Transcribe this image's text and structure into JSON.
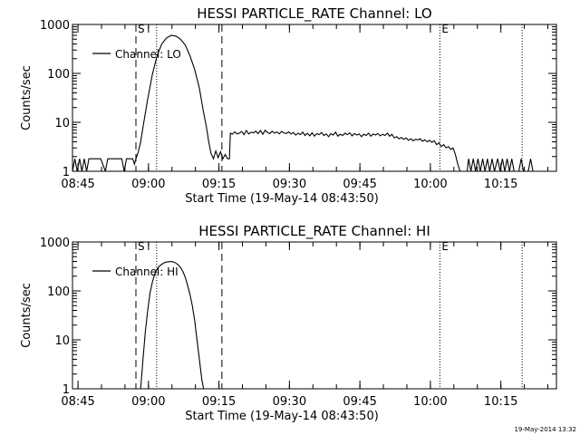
{
  "timestamp": "19-May-2014 13:32",
  "chart_data": [
    {
      "type": "line",
      "title": "HESSI PARTICLE_RATE Channel: LO",
      "xlabel": "Start Time (19-May-14 08:43:50)",
      "ylabel": "Counts/sec",
      "yscale": "log",
      "ylim": [
        1,
        1000
      ],
      "xlim_minutes": [
        0,
        103
      ],
      "xtick_labels": [
        "08:45",
        "09:00",
        "09:15",
        "09:30",
        "09:45",
        "10:00",
        "10:15"
      ],
      "xtick_minutes": [
        1.17,
        16.17,
        31.17,
        46.17,
        61.17,
        76.17,
        91.17
      ],
      "ytick_labels": [
        "1",
        "10",
        "100",
        "1000"
      ],
      "ytick_values": [
        1,
        10,
        100,
        1000
      ],
      "legend": "Channel: LO",
      "markers": [
        {
          "type": "dashed",
          "minute": 13.5,
          "label": "S"
        },
        {
          "type": "dotted",
          "minute": 17.9,
          "label": ""
        },
        {
          "type": "dashed",
          "minute": 31.8,
          "label": ""
        },
        {
          "type": "dotted",
          "minute": 78.2,
          "label": "E"
        },
        {
          "type": "dotted",
          "minute": 95.7,
          "label": ""
        }
      ],
      "series": [
        {
          "points": [
            [
              0.0,
              1.0
            ],
            [
              0.5,
              1.8
            ],
            [
              1.0,
              1.0
            ],
            [
              1.5,
              1.8
            ],
            [
              2.0,
              1.0
            ],
            [
              2.5,
              1.8
            ],
            [
              3.0,
              1.0
            ],
            [
              3.5,
              1.8
            ],
            [
              4.0,
              1.8
            ],
            [
              5.0,
              1.8
            ],
            [
              6.0,
              1.8
            ],
            [
              7.0,
              1.0
            ],
            [
              7.5,
              1.8
            ],
            [
              8.5,
              1.8
            ],
            [
              9.5,
              1.8
            ],
            [
              10.5,
              1.8
            ],
            [
              11.0,
              1.0
            ],
            [
              11.5,
              1.8
            ],
            [
              12.0,
              1.8
            ],
            [
              12.8,
              1.8
            ],
            [
              13.2,
              1.4
            ],
            [
              13.5,
              1.8
            ],
            [
              14.0,
              2.5
            ],
            [
              14.5,
              4.0
            ],
            [
              15.0,
              8
            ],
            [
              16.0,
              30
            ],
            [
              17.0,
              95
            ],
            [
              18.0,
              230
            ],
            [
              19.0,
              400
            ],
            [
              20.0,
              530
            ],
            [
              21.0,
              600
            ],
            [
              22.0,
              580
            ],
            [
              23.0,
              500
            ],
            [
              24.0,
              380
            ],
            [
              25.0,
              230
            ],
            [
              26.0,
              120
            ],
            [
              27.0,
              50
            ],
            [
              27.8,
              18
            ],
            [
              28.5,
              8
            ],
            [
              29.0,
              4
            ],
            [
              29.5,
              2.3
            ],
            [
              30.0,
              1.8
            ],
            [
              30.5,
              2.6
            ],
            [
              31.0,
              1.9
            ],
            [
              31.5,
              2.5
            ],
            [
              32.0,
              1.8
            ],
            [
              32.5,
              2.2
            ],
            [
              33.0,
              1.8
            ],
            [
              33.4,
              1.8
            ],
            [
              33.6,
              6.0
            ],
            [
              34.0,
              5.7
            ],
            [
              34.5,
              6.4
            ],
            [
              35.0,
              5.8
            ],
            [
              35.5,
              6.0
            ],
            [
              36.0,
              6.5
            ],
            [
              36.5,
              5.6
            ],
            [
              37.0,
              6.8
            ],
            [
              37.5,
              5.8
            ],
            [
              38.0,
              6.3
            ],
            [
              38.5,
              6.1
            ],
            [
              39.0,
              6.6
            ],
            [
              39.5,
              5.9
            ],
            [
              40.0,
              6.8
            ],
            [
              40.5,
              5.7
            ],
            [
              41.0,
              6.9
            ],
            [
              41.5,
              6.2
            ],
            [
              42.0,
              5.9
            ],
            [
              42.5,
              6.6
            ],
            [
              43.0,
              6.0
            ],
            [
              43.5,
              6.4
            ],
            [
              44.0,
              5.8
            ],
            [
              44.5,
              6.5
            ],
            [
              45.0,
              6.1
            ],
            [
              45.5,
              5.9
            ],
            [
              46.0,
              6.4
            ],
            [
              46.5,
              5.8
            ],
            [
              47.0,
              6.2
            ],
            [
              47.5,
              5.5
            ],
            [
              48.0,
              6.0
            ],
            [
              48.5,
              5.6
            ],
            [
              49.0,
              6.3
            ],
            [
              49.5,
              5.4
            ],
            [
              50.0,
              6.0
            ],
            [
              50.5,
              5.3
            ],
            [
              51.0,
              6.1
            ],
            [
              51.5,
              5.2
            ],
            [
              52.0,
              5.9
            ],
            [
              52.5,
              5.6
            ],
            [
              53.0,
              6.2
            ],
            [
              53.5,
              5.4
            ],
            [
              54.0,
              5.8
            ],
            [
              54.5,
              5.1
            ],
            [
              55.0,
              5.9
            ],
            [
              55.5,
              5.5
            ],
            [
              56.0,
              6.3
            ],
            [
              56.5,
              5.2
            ],
            [
              57.0,
              5.7
            ],
            [
              57.5,
              5.4
            ],
            [
              58.0,
              6.0
            ],
            [
              58.5,
              5.6
            ],
            [
              59.0,
              6.1
            ],
            [
              59.5,
              5.3
            ],
            [
              60.0,
              5.9
            ],
            [
              60.5,
              5.5
            ],
            [
              61.0,
              5.8
            ],
            [
              61.5,
              5.1
            ],
            [
              62.0,
              5.7
            ],
            [
              62.5,
              5.4
            ],
            [
              63.0,
              6.0
            ],
            [
              63.5,
              5.2
            ],
            [
              64.0,
              5.8
            ],
            [
              64.5,
              5.5
            ],
            [
              65.0,
              5.9
            ],
            [
              65.5,
              5.3
            ],
            [
              66.0,
              5.7
            ],
            [
              66.5,
              5.4
            ],
            [
              67.0,
              6.0
            ],
            [
              67.5,
              5.2
            ],
            [
              68.0,
              5.7
            ],
            [
              68.5,
              4.8
            ],
            [
              69.0,
              5.1
            ],
            [
              69.5,
              4.6
            ],
            [
              70.0,
              4.9
            ],
            [
              70.5,
              4.5
            ],
            [
              71.0,
              4.8
            ],
            [
              71.5,
              4.3
            ],
            [
              72.0,
              4.6
            ],
            [
              72.5,
              4.2
            ],
            [
              73.0,
              4.5
            ],
            [
              73.5,
              4.4
            ],
            [
              74.0,
              4.6
            ],
            [
              74.5,
              4.1
            ],
            [
              75.0,
              4.4
            ],
            [
              75.5,
              4.0
            ],
            [
              76.0,
              4.3
            ],
            [
              76.5,
              3.9
            ],
            [
              77.0,
              4.2
            ],
            [
              77.5,
              3.5
            ],
            [
              78.0,
              3.8
            ],
            [
              78.5,
              3.2
            ],
            [
              79.0,
              3.5
            ],
            [
              79.5,
              3.0
            ],
            [
              80.0,
              3.2
            ],
            [
              80.5,
              2.8
            ],
            [
              81.0,
              3.0
            ],
            [
              81.5,
              2.2
            ],
            [
              82.0,
              1.4
            ],
            [
              82.5,
              1.0
            ],
            [
              84.0,
              1.0
            ],
            [
              84.3,
              1.8
            ],
            [
              84.8,
              1.0
            ],
            [
              85.3,
              1.8
            ],
            [
              85.8,
              1.0
            ],
            [
              86.3,
              1.8
            ],
            [
              86.8,
              1.0
            ],
            [
              87.3,
              1.8
            ],
            [
              87.8,
              1.0
            ],
            [
              88.3,
              1.8
            ],
            [
              88.8,
              1.0
            ],
            [
              89.3,
              1.8
            ],
            [
              89.8,
              1.0
            ],
            [
              90.5,
              1.8
            ],
            [
              91.0,
              1.0
            ],
            [
              91.5,
              1.8
            ],
            [
              92.0,
              1.0
            ],
            [
              92.5,
              1.8
            ],
            [
              93.0,
              1.0
            ],
            [
              93.5,
              1.8
            ],
            [
              94.0,
              1.0
            ],
            [
              95.0,
              1.0
            ],
            [
              95.5,
              1.8
            ],
            [
              96.0,
              1.0
            ],
            [
              97.0,
              1.0
            ],
            [
              97.5,
              1.8
            ],
            [
              98.0,
              1.0
            ]
          ]
        }
      ]
    },
    {
      "type": "line",
      "title": "HESSI PARTICLE_RATE Channel: HI",
      "xlabel": "Start Time (19-May-14 08:43:50)",
      "ylabel": "Counts/sec",
      "yscale": "log",
      "ylim": [
        1,
        1000
      ],
      "xlim_minutes": [
        0,
        103
      ],
      "xtick_labels": [
        "08:45",
        "09:00",
        "09:15",
        "09:30",
        "09:45",
        "10:00",
        "10:15"
      ],
      "xtick_minutes": [
        1.17,
        16.17,
        31.17,
        46.17,
        61.17,
        76.17,
        91.17
      ],
      "ytick_labels": [
        "1",
        "10",
        "100",
        "1000"
      ],
      "ytick_values": [
        1,
        10,
        100,
        1000
      ],
      "legend": "Channel: HI",
      "markers": [
        {
          "type": "dashed",
          "minute": 13.5,
          "label": "S"
        },
        {
          "type": "dotted",
          "minute": 17.9,
          "label": ""
        },
        {
          "type": "dashed",
          "minute": 31.8,
          "label": ""
        },
        {
          "type": "dotted",
          "minute": 78.2,
          "label": "E"
        },
        {
          "type": "dotted",
          "minute": 95.7,
          "label": ""
        }
      ],
      "series": [
        {
          "points": [
            [
              14.5,
              1.0
            ],
            [
              15.0,
              4.0
            ],
            [
              15.5,
              15
            ],
            [
              16.0,
              40
            ],
            [
              16.5,
              90
            ],
            [
              17.0,
              150
            ],
            [
              17.5,
              220
            ],
            [
              18.0,
              280
            ],
            [
              18.5,
              320
            ],
            [
              19.0,
              350
            ],
            [
              19.5,
              375
            ],
            [
              20.0,
              390
            ],
            [
              20.5,
              395
            ],
            [
              21.0,
              398
            ],
            [
              21.5,
              390
            ],
            [
              22.0,
              370
            ],
            [
              22.5,
              340
            ],
            [
              23.0,
              300
            ],
            [
              23.5,
              250
            ],
            [
              24.0,
              190
            ],
            [
              24.5,
              130
            ],
            [
              25.0,
              85
            ],
            [
              25.5,
              50
            ],
            [
              26.0,
              25
            ],
            [
              26.5,
              10
            ],
            [
              27.0,
              4
            ],
            [
              27.5,
              1.6
            ],
            [
              27.9,
              1.0
            ]
          ]
        }
      ]
    }
  ]
}
